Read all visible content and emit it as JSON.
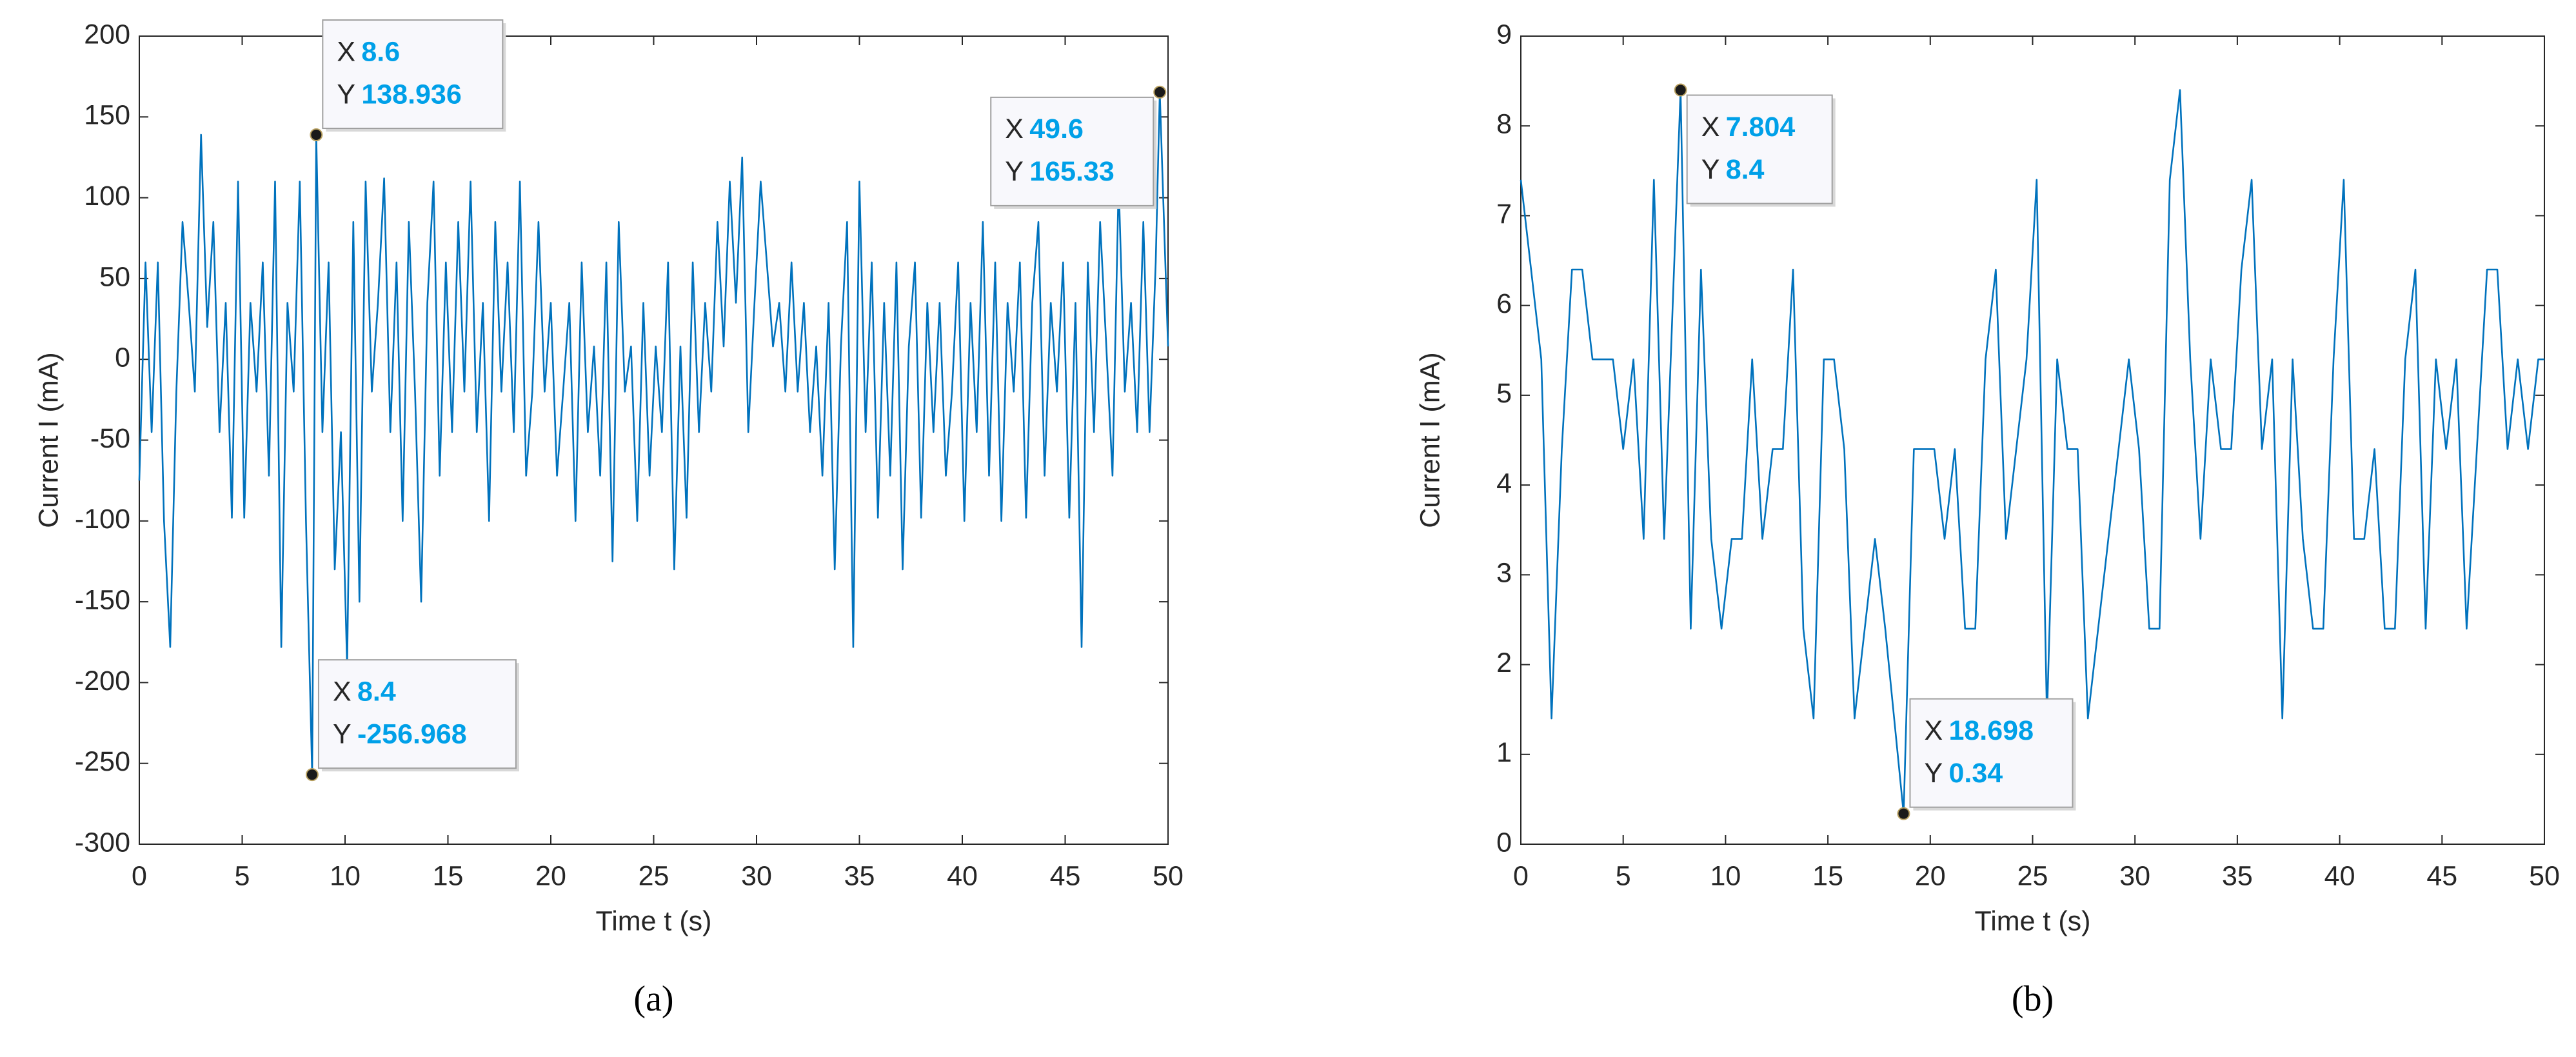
{
  "chart_data": [
    {
      "type": "line",
      "caption": "(a)",
      "xlabel": "Time t (s)",
      "ylabel": "Current I (mA)",
      "xlim": [
        0,
        50
      ],
      "xticks": [
        0,
        5,
        10,
        15,
        20,
        25,
        30,
        35,
        40,
        45,
        50
      ],
      "ylim": [
        -300,
        200
      ],
      "yticks": [
        -300,
        -250,
        -200,
        -150,
        -100,
        -50,
        0,
        50,
        100,
        150,
        200
      ],
      "series": [
        {
          "color": "#0072bd",
          "x": [
            0,
            0.3,
            0.6,
            0.9,
            1.2,
            1.5,
            1.8,
            2.1,
            2.4,
            2.7,
            3.0,
            3.3,
            3.6,
            3.9,
            4.2,
            4.5,
            4.8,
            5.1,
            5.4,
            5.7,
            6.0,
            6.3,
            6.6,
            6.9,
            7.2,
            7.5,
            7.8,
            8.1,
            8.4,
            8.6,
            8.9,
            9.2,
            9.5,
            9.8,
            10.1,
            10.4,
            10.7,
            11.0,
            11.3,
            11.6,
            11.9,
            12.2,
            12.5,
            12.8,
            13.1,
            13.4,
            13.7,
            14.0,
            14.3,
            14.6,
            14.9,
            15.2,
            15.5,
            15.8,
            16.1,
            16.4,
            16.7,
            17.0,
            17.3,
            17.6,
            17.9,
            18.2,
            18.5,
            18.8,
            19.1,
            19.4,
            19.7,
            20.0,
            20.3,
            20.6,
            20.9,
            21.2,
            21.5,
            21.8,
            22.1,
            22.4,
            22.7,
            23.0,
            23.3,
            23.6,
            23.9,
            24.2,
            24.5,
            24.8,
            25.1,
            25.4,
            25.7,
            26.0,
            26.3,
            26.6,
            26.9,
            27.2,
            27.5,
            27.8,
            28.1,
            28.4,
            28.7,
            29.0,
            29.3,
            29.6,
            29.9,
            30.2,
            30.5,
            30.8,
            31.1,
            31.4,
            31.7,
            32.0,
            32.3,
            32.6,
            32.9,
            33.2,
            33.5,
            33.8,
            34.1,
            34.4,
            34.7,
            35.0,
            35.3,
            35.6,
            35.9,
            36.2,
            36.5,
            36.8,
            37.1,
            37.4,
            37.7,
            38.0,
            38.3,
            38.6,
            38.9,
            39.2,
            39.5,
            39.8,
            40.1,
            40.4,
            40.7,
            41.0,
            41.3,
            41.6,
            41.9,
            42.2,
            42.5,
            42.8,
            43.1,
            43.4,
            43.7,
            44.0,
            44.3,
            44.6,
            44.9,
            45.2,
            45.5,
            45.8,
            46.1,
            46.4,
            46.7,
            47.0,
            47.3,
            47.6,
            47.9,
            48.2,
            48.5,
            48.8,
            49.1,
            49.4,
            49.6,
            50.0
          ],
          "values": [
            -75,
            60,
            -45,
            60,
            -100,
            -178,
            -20,
            85,
            35,
            -20,
            139,
            20,
            85,
            -45,
            35,
            -98,
            110,
            -98,
            35,
            -20,
            60,
            -72,
            110,
            -178,
            35,
            -20,
            110,
            -100,
            -256.968,
            138.936,
            -45,
            60,
            -130,
            -45,
            -190,
            85,
            -150,
            110,
            -20,
            35,
            112,
            -45,
            60,
            -100,
            85,
            -20,
            -150,
            35,
            110,
            -72,
            60,
            -45,
            85,
            -20,
            110,
            -45,
            35,
            -100,
            85,
            -20,
            60,
            -45,
            110,
            -72,
            -20,
            85,
            -20,
            35,
            -72,
            -20,
            35,
            -100,
            60,
            -45,
            8,
            -72,
            60,
            -125,
            85,
            -20,
            8,
            -100,
            35,
            -72,
            8,
            -45,
            60,
            -130,
            8,
            -98,
            60,
            -45,
            35,
            -20,
            85,
            8,
            110,
            35,
            125,
            -45,
            35,
            110,
            60,
            8,
            35,
            -20,
            60,
            -20,
            35,
            -45,
            8,
            -72,
            35,
            -130,
            8,
            85,
            -178,
            110,
            -45,
            60,
            -98,
            35,
            -72,
            60,
            -130,
            8,
            60,
            -98,
            35,
            -45,
            35,
            -72,
            -20,
            60,
            -100,
            35,
            -45,
            85,
            -72,
            60,
            -100,
            35,
            -20,
            60,
            -98,
            35,
            85,
            -72,
            35,
            -20,
            60,
            -98,
            35,
            -178,
            60,
            -45,
            85,
            8,
            -72,
            110,
            -20,
            35,
            -45,
            85,
            -45,
            60,
            165.33,
            8
          ]
        }
      ],
      "annotations": [
        {
          "x_label": "X",
          "x": 8.6,
          "y_label": "Y",
          "y": 138.936
        },
        {
          "x_label": "X",
          "x": 8.4,
          "y_label": "Y",
          "y": -256.968
        },
        {
          "x_label": "X",
          "x": 49.6,
          "y_label": "Y",
          "y": 165.33
        }
      ]
    },
    {
      "type": "line",
      "caption": "(b)",
      "xlabel": "Time t (s)",
      "ylabel": "Current I (mA)",
      "xlim": [
        0,
        50
      ],
      "xticks": [
        0,
        5,
        10,
        15,
        20,
        25,
        30,
        35,
        40,
        45,
        50
      ],
      "ylim": [
        0,
        9
      ],
      "yticks": [
        0,
        1,
        2,
        3,
        4,
        5,
        6,
        7,
        8,
        9
      ],
      "series": [
        {
          "color": "#0072bd",
          "x": [
            0,
            0.5,
            1.0,
            1.5,
            2.0,
            2.5,
            3.0,
            3.5,
            4.0,
            4.5,
            5.0,
            5.5,
            6.0,
            6.5,
            7.0,
            7.804,
            8.3,
            8.8,
            9.3,
            9.8,
            10.3,
            10.8,
            11.3,
            11.8,
            12.3,
            12.8,
            13.3,
            13.8,
            14.3,
            14.8,
            15.3,
            15.8,
            16.3,
            16.8,
            17.3,
            17.8,
            18.698,
            19.2,
            19.7,
            20.2,
            20.7,
            21.2,
            21.7,
            22.2,
            22.7,
            23.2,
            23.7,
            24.2,
            24.7,
            25.2,
            25.7,
            26.2,
            26.7,
            27.2,
            27.7,
            28.2,
            28.7,
            29.2,
            29.7,
            30.2,
            30.7,
            31.2,
            31.7,
            32.2,
            32.7,
            33.2,
            33.7,
            34.2,
            34.7,
            35.2,
            35.7,
            36.2,
            36.7,
            37.2,
            37.7,
            38.2,
            38.7,
            39.2,
            39.7,
            40.2,
            40.7,
            41.2,
            41.7,
            42.2,
            42.7,
            43.2,
            43.7,
            44.2,
            44.7,
            45.2,
            45.7,
            46.2,
            46.7,
            47.2,
            47.7,
            48.2,
            48.7,
            49.2,
            49.7,
            50
          ],
          "values": [
            7.4,
            6.4,
            5.4,
            1.4,
            4.4,
            6.4,
            6.4,
            5.4,
            5.4,
            5.4,
            4.4,
            5.4,
            3.4,
            7.4,
            3.4,
            8.4,
            2.4,
            6.4,
            3.4,
            2.4,
            3.4,
            3.4,
            5.4,
            3.4,
            4.4,
            4.4,
            6.4,
            2.4,
            1.4,
            5.4,
            5.4,
            4.4,
            1.4,
            2.4,
            3.4,
            2.4,
            0.34,
            4.4,
            4.4,
            4.4,
            3.4,
            4.4,
            2.4,
            2.4,
            5.4,
            6.4,
            3.4,
            4.4,
            5.4,
            7.4,
            1.4,
            5.4,
            4.4,
            4.4,
            1.4,
            2.4,
            3.4,
            4.4,
            5.4,
            4.4,
            2.4,
            2.4,
            7.4,
            8.4,
            5.4,
            3.4,
            5.4,
            4.4,
            4.4,
            6.4,
            7.4,
            4.4,
            5.4,
            1.4,
            5.4,
            3.4,
            2.4,
            2.4,
            5.4,
            7.4,
            3.4,
            3.4,
            4.4,
            2.4,
            2.4,
            5.4,
            6.4,
            2.4,
            5.4,
            4.4,
            5.4,
            2.4,
            4.4,
            6.4,
            6.4,
            4.4,
            5.4,
            4.4,
            5.4,
            5.4
          ]
        }
      ],
      "annotations": [
        {
          "x_label": "X",
          "x": 7.804,
          "y_label": "Y",
          "y": 8.4
        },
        {
          "x_label": "X",
          "x": 18.698,
          "y_label": "Y",
          "y": 0.34
        }
      ]
    }
  ]
}
